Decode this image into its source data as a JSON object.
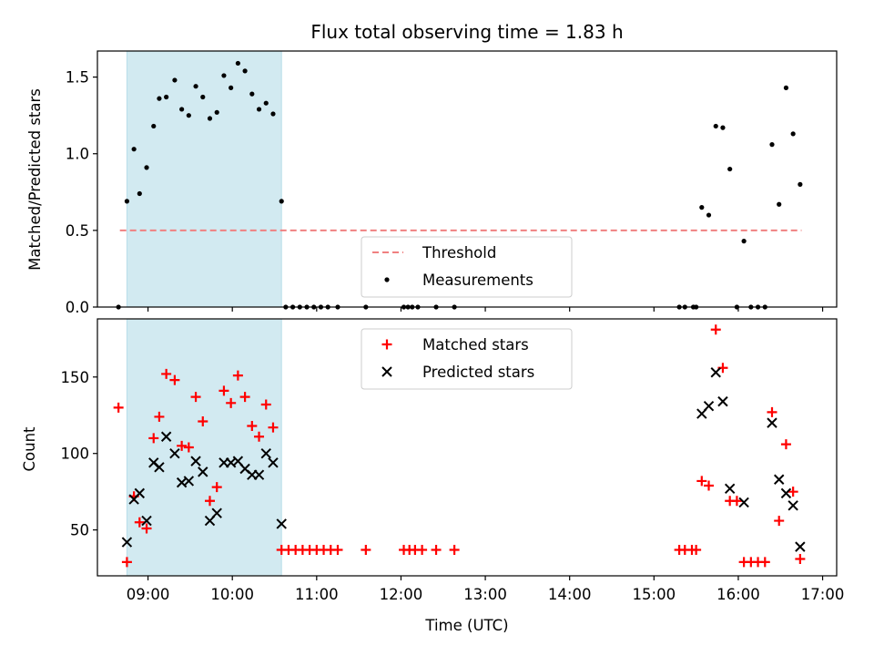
{
  "title": "Flux total observing time = 1.83 h",
  "chart_data": [
    {
      "type": "scatter",
      "ylabel": "Matched/Predicted stars",
      "xlabel": "",
      "xlim": [
        "08:24",
        "17:10"
      ],
      "ylim": [
        0,
        1.67
      ],
      "yticks": [
        0.0,
        0.5,
        1.0,
        1.5
      ],
      "ytick_labels": [
        "0.0",
        "0.5",
        "1.0",
        "1.5"
      ],
      "xticks": [
        "09:00",
        "10:00",
        "11:00",
        "12:00",
        "13:00",
        "14:00",
        "15:00",
        "16:00",
        "17:00"
      ],
      "shaded_region": {
        "start": "08:45",
        "end": "10:35",
        "color": "#add8e6"
      },
      "legend": {
        "position": "lower-center",
        "entries": [
          "Threshold",
          "Measurements"
        ]
      },
      "series": [
        {
          "name": "Threshold",
          "style": "dashed-line",
          "color": "#f08080",
          "points": [
            [
              "08:40",
              0.5
            ],
            [
              "16:45",
              0.5
            ]
          ]
        },
        {
          "name": "Measurements",
          "style": "dot",
          "color": "#000000",
          "points": [
            [
              "08:39",
              0.0
            ],
            [
              "08:45",
              0.69
            ],
            [
              "08:50",
              1.03
            ],
            [
              "08:54",
              0.74
            ],
            [
              "08:59",
              0.91
            ],
            [
              "09:04",
              1.18
            ],
            [
              "09:08",
              1.36
            ],
            [
              "09:13",
              1.37
            ],
            [
              "09:19",
              1.48
            ],
            [
              "09:24",
              1.29
            ],
            [
              "09:29",
              1.25
            ],
            [
              "09:34",
              1.44
            ],
            [
              "09:39",
              1.37
            ],
            [
              "09:44",
              1.23
            ],
            [
              "09:49",
              1.27
            ],
            [
              "09:54",
              1.51
            ],
            [
              "09:59",
              1.43
            ],
            [
              "10:04",
              1.59
            ],
            [
              "10:09",
              1.54
            ],
            [
              "10:14",
              1.39
            ],
            [
              "10:19",
              1.29
            ],
            [
              "10:24",
              1.33
            ],
            [
              "10:29",
              1.26
            ],
            [
              "10:35",
              0.69
            ],
            [
              "10:38",
              0.0
            ],
            [
              "10:43",
              0.0
            ],
            [
              "10:48",
              0.0
            ],
            [
              "10:53",
              0.0
            ],
            [
              "10:58",
              0.0
            ],
            [
              "11:03",
              0.0
            ],
            [
              "11:08",
              0.0
            ],
            [
              "11:15",
              0.0
            ],
            [
              "11:35",
              0.0
            ],
            [
              "12:02",
              0.0
            ],
            [
              "12:05",
              0.0
            ],
            [
              "12:08",
              0.0
            ],
            [
              "12:12",
              0.0
            ],
            [
              "12:25",
              0.0
            ],
            [
              "12:38",
              0.0
            ],
            [
              "15:18",
              0.0
            ],
            [
              "15:22",
              0.0
            ],
            [
              "15:28",
              0.0
            ],
            [
              "15:30",
              0.0
            ],
            [
              "15:34",
              0.65
            ],
            [
              "15:39",
              0.6
            ],
            [
              "15:44",
              1.18
            ],
            [
              "15:49",
              1.17
            ],
            [
              "15:54",
              0.9
            ],
            [
              "15:59",
              0.0
            ],
            [
              "16:04",
              0.43
            ],
            [
              "16:09",
              0.0
            ],
            [
              "16:14",
              0.0
            ],
            [
              "16:19",
              0.0
            ],
            [
              "16:24",
              1.06
            ],
            [
              "16:29",
              0.67
            ],
            [
              "16:34",
              1.43
            ],
            [
              "16:39",
              1.13
            ],
            [
              "16:44",
              0.8
            ]
          ]
        }
      ]
    },
    {
      "type": "scatter",
      "ylabel": "Count",
      "xlabel": "Time (UTC)",
      "xlim": [
        "08:24",
        "17:10"
      ],
      "ylim": [
        20,
        188
      ],
      "yticks": [
        50,
        100,
        150
      ],
      "ytick_labels": [
        "50",
        "100",
        "150"
      ],
      "xticks": [
        "09:00",
        "10:00",
        "11:00",
        "12:00",
        "13:00",
        "14:00",
        "15:00",
        "16:00",
        "17:00"
      ],
      "xtick_labels": [
        "09:00",
        "10:00",
        "11:00",
        "12:00",
        "13:00",
        "14:00",
        "15:00",
        "16:00",
        "17:00"
      ],
      "shaded_region": {
        "start": "08:45",
        "end": "10:35",
        "color": "#add8e6"
      },
      "legend": {
        "position": "upper-center",
        "entries": [
          "Matched stars",
          "Predicted stars"
        ]
      },
      "series": [
        {
          "name": "Matched stars",
          "marker": "plus",
          "color": "#ff0000",
          "points": [
            [
              "08:39",
              130
            ],
            [
              "08:45",
              29
            ],
            [
              "08:50",
              72
            ],
            [
              "08:54",
              55
            ],
            [
              "08:59",
              51
            ],
            [
              "09:04",
              110
            ],
            [
              "09:08",
              124
            ],
            [
              "09:13",
              152
            ],
            [
              "09:19",
              148
            ],
            [
              "09:24",
              105
            ],
            [
              "09:29",
              104
            ],
            [
              "09:34",
              137
            ],
            [
              "09:39",
              121
            ],
            [
              "09:44",
              69
            ],
            [
              "09:49",
              78
            ],
            [
              "09:54",
              141
            ],
            [
              "09:59",
              133
            ],
            [
              "10:04",
              151
            ],
            [
              "10:09",
              137
            ],
            [
              "10:14",
              118
            ],
            [
              "10:19",
              111
            ],
            [
              "10:24",
              132
            ],
            [
              "10:29",
              117
            ],
            [
              "10:35",
              37
            ],
            [
              "10:40",
              37
            ],
            [
              "10:45",
              37
            ],
            [
              "10:50",
              37
            ],
            [
              "10:55",
              37
            ],
            [
              "11:00",
              37
            ],
            [
              "11:05",
              37
            ],
            [
              "11:10",
              37
            ],
            [
              "11:15",
              37
            ],
            [
              "11:35",
              37
            ],
            [
              "12:02",
              37
            ],
            [
              "12:06",
              37
            ],
            [
              "12:10",
              37
            ],
            [
              "12:15",
              37
            ],
            [
              "12:25",
              37
            ],
            [
              "12:38",
              37
            ],
            [
              "15:18",
              37
            ],
            [
              "15:22",
              37
            ],
            [
              "15:27",
              37
            ],
            [
              "15:30",
              37
            ],
            [
              "15:34",
              82
            ],
            [
              "15:39",
              79
            ],
            [
              "15:44",
              181
            ],
            [
              "15:49",
              156
            ],
            [
              "15:54",
              69
            ],
            [
              "15:59",
              69
            ],
            [
              "16:04",
              29
            ],
            [
              "16:09",
              29
            ],
            [
              "16:14",
              29
            ],
            [
              "16:19",
              29
            ],
            [
              "16:24",
              127
            ],
            [
              "16:29",
              56
            ],
            [
              "16:34",
              106
            ],
            [
              "16:39",
              75
            ],
            [
              "16:44",
              31
            ]
          ]
        },
        {
          "name": "Predicted stars",
          "marker": "x",
          "color": "#000000",
          "points": [
            [
              "08:45",
              42
            ],
            [
              "08:50",
              70
            ],
            [
              "08:54",
              74
            ],
            [
              "08:59",
              56
            ],
            [
              "09:04",
              94
            ],
            [
              "09:08",
              91
            ],
            [
              "09:13",
              111
            ],
            [
              "09:19",
              100
            ],
            [
              "09:24",
              81
            ],
            [
              "09:29",
              82
            ],
            [
              "09:34",
              95
            ],
            [
              "09:39",
              88
            ],
            [
              "09:44",
              56
            ],
            [
              "09:49",
              61
            ],
            [
              "09:54",
              94
            ],
            [
              "09:59",
              94
            ],
            [
              "10:04",
              95
            ],
            [
              "10:09",
              90
            ],
            [
              "10:14",
              86
            ],
            [
              "10:19",
              86
            ],
            [
              "10:24",
              100
            ],
            [
              "10:29",
              94
            ],
            [
              "10:35",
              54
            ],
            [
              "15:34",
              126
            ],
            [
              "15:39",
              131
            ],
            [
              "15:44",
              153
            ],
            [
              "15:49",
              134
            ],
            [
              "15:54",
              77
            ],
            [
              "16:04",
              68
            ],
            [
              "16:24",
              120
            ],
            [
              "16:29",
              83
            ],
            [
              "16:34",
              74
            ],
            [
              "16:39",
              66
            ],
            [
              "16:44",
              39
            ]
          ]
        }
      ]
    }
  ]
}
